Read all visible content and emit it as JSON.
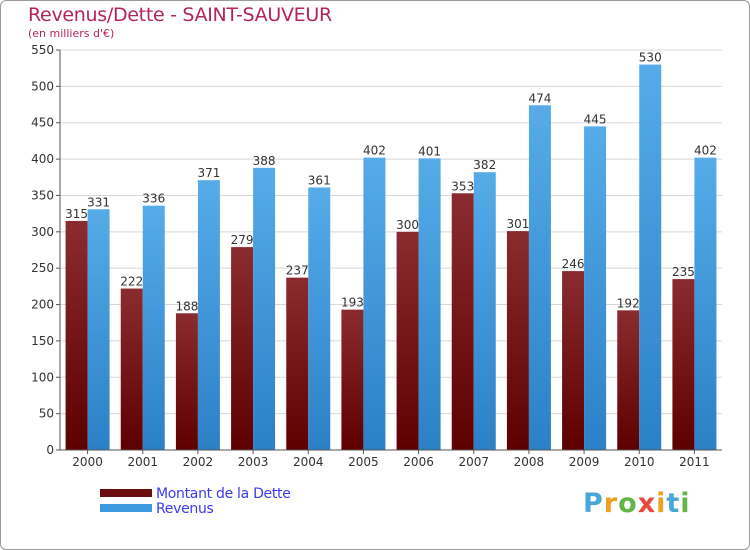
{
  "header": {
    "title": "Revenus/Dette - SAINT-SAUVEUR",
    "subtitle": "(en milliers d'€)"
  },
  "chart_data": {
    "type": "bar",
    "categories": [
      "2000",
      "2001",
      "2002",
      "2003",
      "2004",
      "2005",
      "2006",
      "2007",
      "2008",
      "2009",
      "2010",
      "2011"
    ],
    "series": [
      {
        "name": "Montant de la Dette",
        "color": "#7a1a1f",
        "values": [
          315,
          222,
          188,
          279,
          237,
          193,
          300,
          353,
          301,
          246,
          192,
          235
        ]
      },
      {
        "name": "Revenus",
        "color": "#3b94dc",
        "values": [
          331,
          336,
          371,
          388,
          361,
          402,
          401,
          382,
          474,
          445,
          530,
          402
        ]
      }
    ],
    "ylim": [
      0,
      550
    ],
    "yticks": [
      0,
      50,
      100,
      150,
      200,
      250,
      300,
      350,
      400,
      450,
      500,
      550
    ],
    "grid": true,
    "legend_position": "bottom-left"
  },
  "legend": {
    "items": [
      {
        "label": "Montant de la Dette",
        "color": "#6b0d10"
      },
      {
        "label": "Revenus",
        "color": "#3d99e0"
      }
    ]
  },
  "logo": {
    "letters": [
      "P",
      "r",
      "o",
      "x",
      "i",
      "t",
      "i"
    ],
    "colors": [
      "#4aa7d8",
      "#f0a020",
      "#62b546",
      "#e8483a",
      "#f0a020",
      "#4aa7d8",
      "#62b546"
    ]
  }
}
